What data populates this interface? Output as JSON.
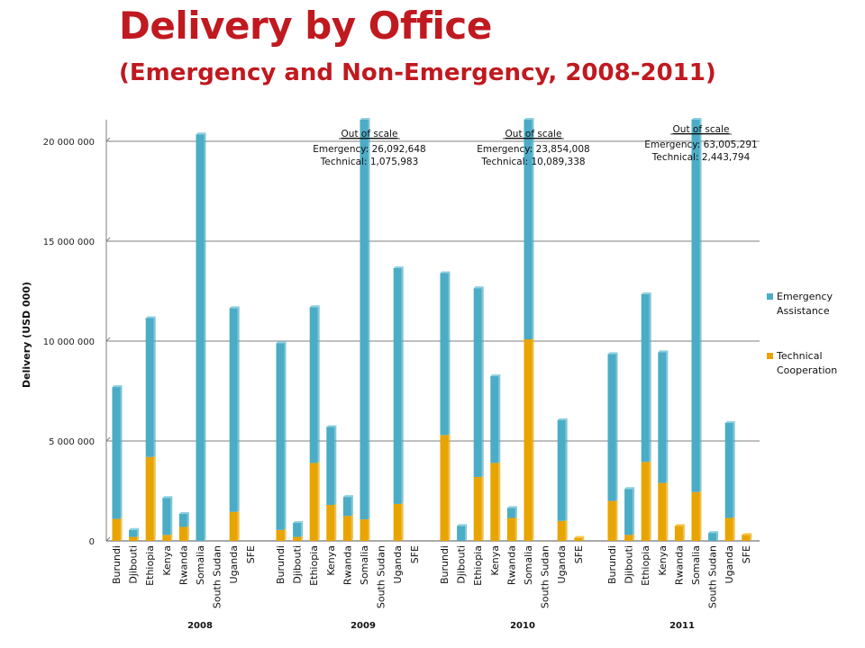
{
  "header": {
    "title": "Delivery by Office",
    "subtitle": "(Emergency and Non-Emergency, 2008-2011)"
  },
  "colors": {
    "emergency": "#4bacc6",
    "emergency_top": "#8fd0e0",
    "technical": "#e8a400",
    "technical_top": "#f7c84a",
    "title": "#c0191f",
    "grid": "#7f7f7f"
  },
  "chart_data": {
    "type": "bar",
    "stacked": true,
    "ylabel": "Delivery (USD 000)",
    "ylim": [
      0,
      20000000
    ],
    "yticks": [
      0,
      5000000,
      10000000,
      15000000,
      20000000
    ],
    "ytick_labels": [
      "0",
      "5 000 000",
      "10 000 000",
      "15 000 000",
      "20 000 000"
    ],
    "grid": true,
    "legend_position": "right",
    "offices": [
      "Burundi",
      "Djibouti",
      "Ethiopia",
      "Kenya",
      "Rwanda",
      "Somalia",
      "South Sudan",
      "Uganda",
      "SFE"
    ],
    "years": [
      "2008",
      "2009",
      "2010",
      "2011"
    ],
    "series": [
      {
        "name": "Technical Cooperation",
        "values": [
          [
            1100000,
            200000,
            4200000,
            300000,
            700000,
            0,
            0,
            1450000,
            0
          ],
          [
            550000,
            200000,
            3900000,
            1800000,
            1250000,
            1075983,
            0,
            1850000,
            0
          ],
          [
            5300000,
            0,
            3200000,
            3900000,
            1150000,
            10089338,
            0,
            1000000,
            150000
          ],
          [
            2000000,
            300000,
            3950000,
            2900000,
            750000,
            2443794,
            0,
            1150000,
            300000
          ]
        ]
      },
      {
        "name": "Emergency Assistance",
        "values": [
          [
            6600000,
            350000,
            6950000,
            1850000,
            650000,
            20350000,
            0,
            10200000,
            0
          ],
          [
            9350000,
            700000,
            7800000,
            3900000,
            950000,
            26092648,
            0,
            11800000,
            0
          ],
          [
            8100000,
            750000,
            9450000,
            4350000,
            500000,
            23854008,
            0,
            5050000,
            0
          ],
          [
            7350000,
            2300000,
            8400000,
            6550000,
            0,
            63005291,
            400000,
            4750000,
            0
          ]
        ]
      }
    ],
    "annotations": [
      {
        "year_index": 1,
        "title": "Out of scale",
        "line1": "Emergency: 26,092,648",
        "line2": "Technical: 1,075,983"
      },
      {
        "year_index": 2,
        "title": "Out of scale",
        "line1": "Emergency: 23,854,008",
        "line2": "Technical: 10,089,338"
      },
      {
        "year_index": 3,
        "title": "Out of scale",
        "line1": "Emergency: 63,005,291",
        "line2": "Technical: 2,443,794"
      }
    ],
    "legend": [
      {
        "label_line1": "Emergency",
        "label_line2": "Assistance",
        "color_key": "emergency"
      },
      {
        "label_line1": "Technical",
        "label_line2": "Cooperation",
        "color_key": "technical"
      }
    ]
  }
}
